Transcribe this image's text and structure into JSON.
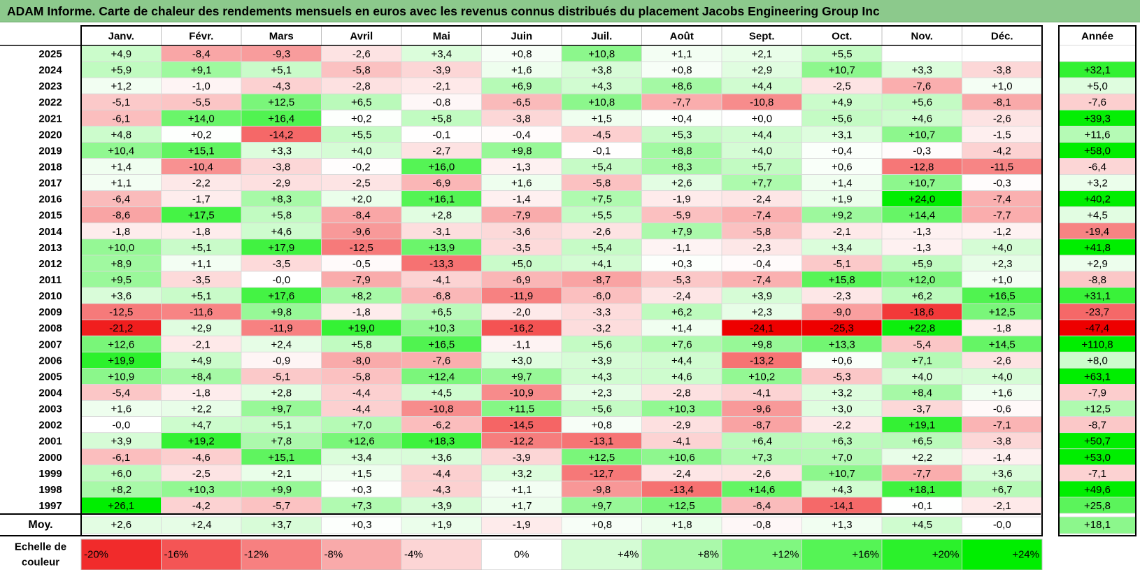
{
  "title": "ADAM Informe. Carte de chaleur des rendements mensuels en euros avec les revenus connus distribués du placement Jacobs Engineering Group Inc",
  "colors": {
    "positive_max": "#00ee00",
    "negative_max": "#ee0000",
    "neutral": "#ffffff",
    "title_bg": "#8cc98c"
  },
  "chart_data": {
    "type": "heatmap",
    "columns": [
      "Janv.",
      "Févr.",
      "Mars",
      "Avril",
      "Mai",
      "Juin",
      "Juil.",
      "Août",
      "Sept.",
      "Oct.",
      "Nov.",
      "Déc."
    ],
    "year_header": "Année",
    "rows": [
      {
        "year": "2025",
        "values": [
          "+4,9",
          "-8,4",
          "-9,3",
          "-2,6",
          "+3,4",
          "+0,8",
          "+10,8",
          "+1,1",
          "+2,1",
          "+5,5",
          "",
          ""
        ],
        "annual": ""
      },
      {
        "year": "2024",
        "values": [
          "+5,9",
          "+9,1",
          "+5,1",
          "-5,8",
          "-3,9",
          "+1,6",
          "+3,8",
          "+0,8",
          "+2,9",
          "+10,7",
          "+3,3",
          "-3,8"
        ],
        "annual": "+32,1"
      },
      {
        "year": "2023",
        "values": [
          "+1,2",
          "-1,0",
          "-4,3",
          "-2,8",
          "-2,1",
          "+6,9",
          "+4,3",
          "+8,6",
          "+4,4",
          "-2,5",
          "-7,6",
          "+1,0"
        ],
        "annual": "+5,0"
      },
      {
        "year": "2022",
        "values": [
          "-5,1",
          "-5,5",
          "+12,5",
          "+6,5",
          "-0,8",
          "-6,5",
          "+10,8",
          "-7,7",
          "-10,8",
          "+4,9",
          "+5,6",
          "-8,1"
        ],
        "annual": "-7,6"
      },
      {
        "year": "2021",
        "values": [
          "-6,1",
          "+14,0",
          "+16,4",
          "+0,2",
          "+5,8",
          "-3,8",
          "+1,5",
          "+0,4",
          "+0,0",
          "+5,6",
          "+4,6",
          "-2,6"
        ],
        "annual": "+39,3"
      },
      {
        "year": "2020",
        "values": [
          "+4,8",
          "+0,2",
          "-14,2",
          "+5,5",
          "-0,1",
          "-0,4",
          "-4,5",
          "+5,3",
          "+4,4",
          "+3,1",
          "+10,7",
          "-1,5"
        ],
        "annual": "+11,6"
      },
      {
        "year": "2019",
        "values": [
          "+10,4",
          "+15,1",
          "+3,3",
          "+4,0",
          "-2,7",
          "+9,8",
          "-0,1",
          "+8,8",
          "+4,0",
          "+0,4",
          "-0,3",
          "-4,2"
        ],
        "annual": "+58,0"
      },
      {
        "year": "2018",
        "values": [
          "+1,4",
          "-10,4",
          "-3,8",
          "-0,2",
          "+16,0",
          "-1,3",
          "+5,4",
          "+8,3",
          "+5,7",
          "+0,6",
          "-12,8",
          "-11,5"
        ],
        "annual": "-6,4"
      },
      {
        "year": "2017",
        "values": [
          "+1,1",
          "-2,2",
          "-2,9",
          "-2,5",
          "-6,9",
          "+1,6",
          "-5,8",
          "+2,6",
          "+7,7",
          "+1,4",
          "+10,7",
          "-0,3"
        ],
        "annual": "+3,2"
      },
      {
        "year": "2016",
        "values": [
          "-6,4",
          "-1,7",
          "+8,3",
          "+2,0",
          "+16,1",
          "-1,4",
          "+7,5",
          "-1,9",
          "-2,4",
          "+1,9",
          "+24,0",
          "-7,4"
        ],
        "annual": "+40,2"
      },
      {
        "year": "2015",
        "values": [
          "-8,6",
          "+17,5",
          "+5,8",
          "-8,4",
          "+2,8",
          "-7,9",
          "+5,5",
          "-5,9",
          "-7,4",
          "+9,2",
          "+14,4",
          "-7,7"
        ],
        "annual": "+4,5"
      },
      {
        "year": "2014",
        "values": [
          "-1,8",
          "-1,8",
          "+4,6",
          "-9,6",
          "-3,1",
          "-3,6",
          "-2,6",
          "+7,9",
          "-5,8",
          "-2,1",
          "-1,3",
          "-1,2"
        ],
        "annual": "-19,4"
      },
      {
        "year": "2013",
        "values": [
          "+10,0",
          "+5,1",
          "+17,9",
          "-12,5",
          "+13,9",
          "-3,5",
          "+5,4",
          "-1,1",
          "-2,3",
          "+3,4",
          "-1,3",
          "+4,0"
        ],
        "annual": "+41,8"
      },
      {
        "year": "2012",
        "values": [
          "+8,9",
          "+1,1",
          "-3,5",
          "-0,5",
          "-13,3",
          "+5,0",
          "+4,1",
          "+0,3",
          "-0,4",
          "-5,1",
          "+5,9",
          "+2,3"
        ],
        "annual": "+2,9"
      },
      {
        "year": "2011",
        "values": [
          "+9,5",
          "-3,5",
          "-0,0",
          "-7,9",
          "-4,1",
          "-6,9",
          "-8,7",
          "-5,3",
          "-7,4",
          "+15,8",
          "+12,0",
          "+1,0"
        ],
        "annual": "-8,8"
      },
      {
        "year": "2010",
        "values": [
          "+3,6",
          "+5,1",
          "+17,6",
          "+8,2",
          "-6,8",
          "-11,9",
          "-6,0",
          "-2,4",
          "+3,9",
          "-2,3",
          "+6,2",
          "+16,5"
        ],
        "annual": "+31,1"
      },
      {
        "year": "2009",
        "values": [
          "-12,5",
          "-11,6",
          "+9,8",
          "-1,8",
          "+6,5",
          "-2,0",
          "-3,3",
          "+6,2",
          "+2,3",
          "-9,0",
          "-18,6",
          "+12,5"
        ],
        "annual": "-23,7"
      },
      {
        "year": "2008",
        "values": [
          "-21,2",
          "+2,9",
          "-11,9",
          "+19,0",
          "+10,3",
          "-16,2",
          "-3,2",
          "+1,4",
          "-24,1",
          "-25,3",
          "+22,8",
          "-1,8"
        ],
        "annual": "-47,4"
      },
      {
        "year": "2007",
        "values": [
          "+12,6",
          "-2,1",
          "+2,4",
          "+5,8",
          "+16,5",
          "-1,1",
          "+5,6",
          "+7,6",
          "+9,8",
          "+13,3",
          "-5,4",
          "+14,5"
        ],
        "annual": "+110,8"
      },
      {
        "year": "2006",
        "values": [
          "+19,9",
          "+4,9",
          "-0,9",
          "-8,0",
          "-7,6",
          "+3,0",
          "+3,9",
          "+4,4",
          "-13,2",
          "+0,6",
          "+7,1",
          "-2,6"
        ],
        "annual": "+8,0"
      },
      {
        "year": "2005",
        "values": [
          "+10,9",
          "+8,4",
          "-5,1",
          "-5,8",
          "+12,4",
          "+9,7",
          "+4,3",
          "+4,6",
          "+10,2",
          "-5,3",
          "+4,0",
          "+4,0"
        ],
        "annual": "+63,1"
      },
      {
        "year": "2004",
        "values": [
          "-5,4",
          "-1,8",
          "+2,8",
          "-4,4",
          "+4,5",
          "-10,9",
          "+2,3",
          "-2,8",
          "-4,1",
          "+3,2",
          "+8,4",
          "+1,6"
        ],
        "annual": "-7,9"
      },
      {
        "year": "2003",
        "values": [
          "+1,6",
          "+2,2",
          "+9,7",
          "-4,4",
          "-10,8",
          "+11,5",
          "+5,6",
          "+10,3",
          "-9,6",
          "+3,0",
          "-3,7",
          "-0,6"
        ],
        "annual": "+12,5"
      },
      {
        "year": "2002",
        "values": [
          "-0,0",
          "+4,7",
          "+5,1",
          "+7,0",
          "-6,2",
          "-14,5",
          "+0,8",
          "-2,9",
          "-8,7",
          "-2,2",
          "+19,1",
          "-7,1"
        ],
        "annual": "-8,7"
      },
      {
        "year": "2001",
        "values": [
          "+3,9",
          "+19,2",
          "+7,8",
          "+12,6",
          "+18,3",
          "-12,2",
          "-13,1",
          "-4,1",
          "+6,4",
          "+6,3",
          "+6,5",
          "-3,8"
        ],
        "annual": "+50,7"
      },
      {
        "year": "2000",
        "values": [
          "-6,1",
          "-4,6",
          "+15,1",
          "+3,4",
          "+3,6",
          "-3,9",
          "+12,5",
          "+10,6",
          "+7,3",
          "+7,0",
          "+2,2",
          "-1,4"
        ],
        "annual": "+53,0"
      },
      {
        "year": "1999",
        "values": [
          "+6,0",
          "-2,5",
          "+2,1",
          "+1,5",
          "-4,4",
          "+3,2",
          "-12,7",
          "-2,4",
          "-2,6",
          "+10,7",
          "-7,7",
          "+3,6"
        ],
        "annual": "-7,1"
      },
      {
        "year": "1998",
        "values": [
          "+8,2",
          "+10,3",
          "+9,9",
          "+0,3",
          "-4,3",
          "+1,1",
          "-9,8",
          "-13,4",
          "+14,6",
          "+4,3",
          "+18,1",
          "+6,7"
        ],
        "annual": "+49,6"
      },
      {
        "year": "1997",
        "values": [
          "+26,1",
          "-4,2",
          "-5,7",
          "+7,3",
          "+3,9",
          "+1,7",
          "+9,7",
          "+12,5",
          "-6,4",
          "-14,1",
          "+0,1",
          "-2,1"
        ],
        "annual": "+25,8"
      }
    ],
    "average": {
      "label": "Moy.",
      "values": [
        "+2,6",
        "+2,4",
        "+3,7",
        "+0,3",
        "+1,9",
        "-1,9",
        "+0,8",
        "+1,8",
        "-0,8",
        "+1,3",
        "+4,5",
        "-0,0"
      ],
      "annual": "+18,1"
    },
    "scale": {
      "label_line1": "Echelle de",
      "label_line2": "couleur",
      "steps": [
        "-20%",
        "-16%",
        "-12%",
        "-8%",
        "-4%",
        "0%",
        "+4%",
        "+8%",
        "+12%",
        "+16%",
        "+20%",
        "+24%"
      ],
      "step_values": [
        -20,
        -16,
        -12,
        -8,
        -4,
        0,
        4,
        8,
        12,
        16,
        20,
        24
      ]
    }
  }
}
